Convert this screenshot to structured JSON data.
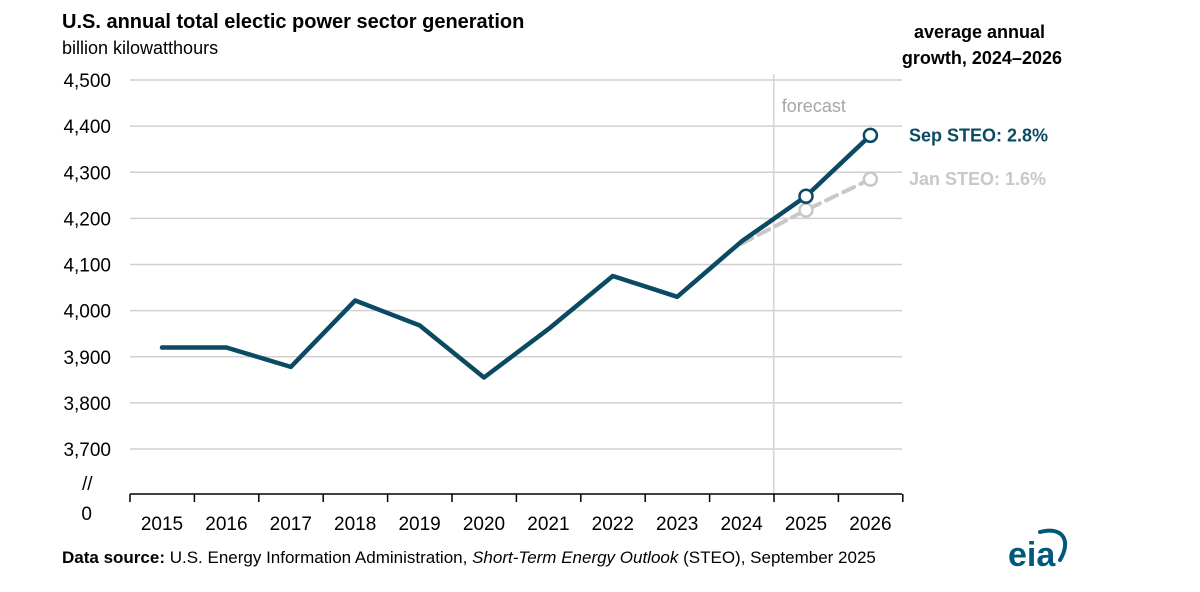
{
  "chart_data": {
    "type": "line",
    "title": "U.S. annual total electic power sector generation",
    "subtitle": "billion kilowatthours",
    "ylabel": "",
    "xlabel": "",
    "categories": [
      "2015",
      "2016",
      "2017",
      "2018",
      "2019",
      "2020",
      "2021",
      "2022",
      "2023",
      "2024",
      "2025",
      "2026"
    ],
    "ylim": [
      3700,
      4500
    ],
    "y_ticks": [
      4500,
      4400,
      4300,
      4200,
      4100,
      4000,
      3900,
      3800,
      3700
    ],
    "y_tick_labels": [
      "4,500",
      "4,400",
      "4,300",
      "4,200",
      "4,100",
      "4,000",
      "3,900",
      "3,800",
      "3,700"
    ],
    "y_zero_label": "0",
    "axis_break_label": "//",
    "grid": true,
    "forecast_label": "forecast",
    "forecast_start": "2024",
    "legend_title": "average annual growth, 2024–2026",
    "legend_title_lines": [
      "average annual",
      "growth, 2024–2026"
    ],
    "series": [
      {
        "name": "Sep STEO: 2.8%",
        "color": "#0b4a63",
        "style": "solid",
        "values": [
          3920,
          3920,
          3878,
          4022,
          3968,
          3855,
          3960,
          4075,
          4030,
          4150,
          4248,
          4380
        ],
        "markers_at": [
          "2025",
          "2026"
        ]
      },
      {
        "name": "Jan STEO: 1.6%",
        "color": "#c8c8c8",
        "style": "dashed",
        "values": [
          null,
          null,
          null,
          null,
          null,
          null,
          null,
          null,
          null,
          4145,
          4218,
          4285
        ],
        "markers_at": [
          "2025",
          "2026"
        ]
      }
    ],
    "source": {
      "prefix": "Data source:",
      "part1": " U.S. Energy Information Administration, ",
      "italic": "Short-Term Energy Outlook",
      "part2": " (STEO), September 2025"
    },
    "logo_text": "eia",
    "colors": {
      "grid": "#d0d0d0",
      "axis": "#000000",
      "forecast_line": "#d4d4d4",
      "logo": "#00597a"
    }
  }
}
